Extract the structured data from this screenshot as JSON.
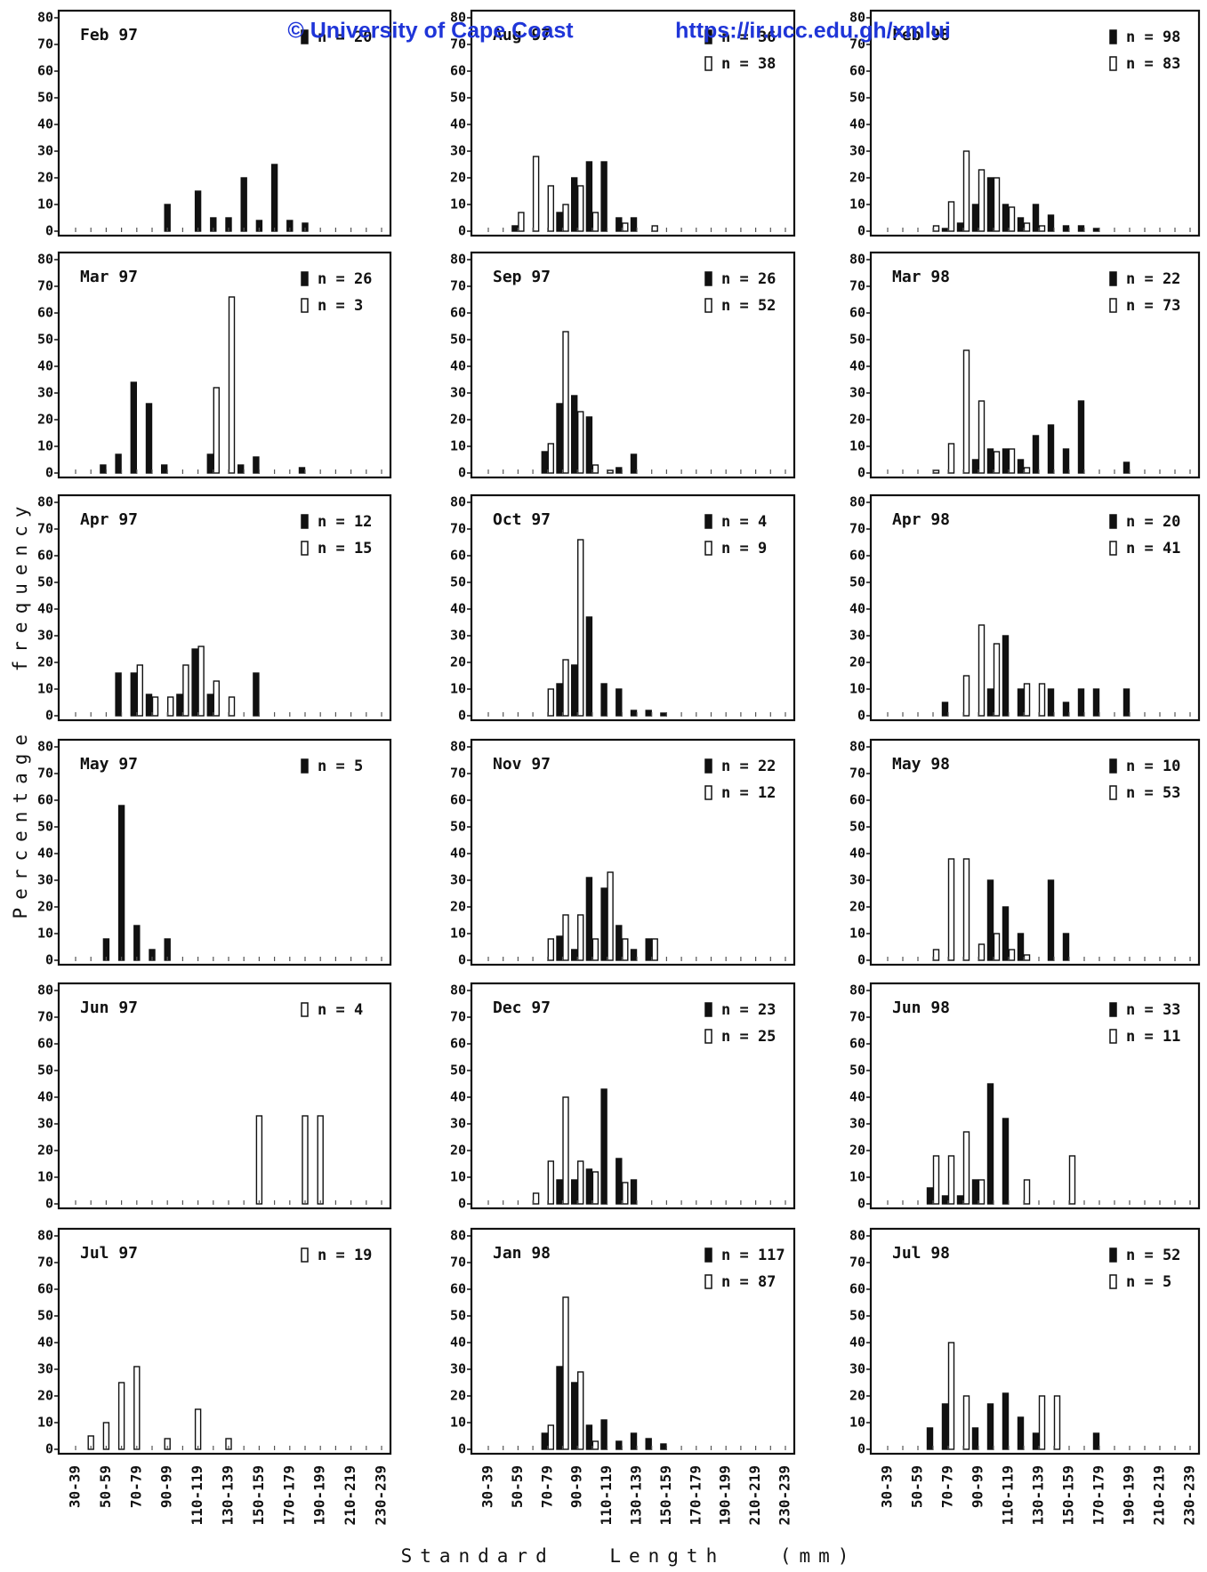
{
  "y_axis_label": "Percentage frequency",
  "x_axis_label": "Standard Length (mm)",
  "watermark": {
    "copyright": "© University of Cape Coast",
    "url": "https://ir.ucc.edu.gh/xmlui"
  },
  "chart_data": [
    {
      "type": "bar",
      "title": "Feb 97",
      "ylim": [
        0,
        80
      ],
      "yticks": [
        0,
        10,
        20,
        30,
        40,
        50,
        60,
        70,
        80
      ],
      "series": [
        {
          "name": "n = 20",
          "color": "#111111",
          "values": [
            0,
            0,
            0,
            0,
            0,
            0,
            10,
            0,
            15,
            5,
            5,
            20,
            4,
            25,
            4,
            3,
            0,
            0,
            0,
            0,
            0
          ]
        }
      ]
    },
    {
      "type": "bar",
      "title": "Mar 97",
      "ylim": [
        0,
        80
      ],
      "yticks": [
        0,
        10,
        20,
        30,
        40,
        50,
        60,
        70,
        80
      ],
      "series": [
        {
          "name": "n = 26",
          "color": "#111111",
          "values": [
            0,
            0,
            3,
            7,
            34,
            26,
            3,
            0,
            0,
            7,
            0,
            3,
            6,
            0,
            0,
            2,
            0,
            0,
            0,
            0,
            0
          ]
        },
        {
          "name": "n = 3",
          "color": "#ffffff",
          "values": [
            0,
            0,
            0,
            0,
            0,
            0,
            0,
            0,
            0,
            32,
            66,
            0,
            0,
            0,
            0,
            0,
            0,
            0,
            0,
            0,
            0
          ]
        }
      ]
    },
    {
      "type": "bar",
      "title": "Apr 97",
      "ylim": [
        0,
        80
      ],
      "yticks": [
        0,
        10,
        20,
        30,
        40,
        50,
        60,
        70,
        80
      ],
      "series": [
        {
          "name": "n = 12",
          "color": "#111111",
          "values": [
            0,
            0,
            0,
            16,
            16,
            8,
            0,
            8,
            25,
            8,
            0,
            0,
            16,
            0,
            0,
            0,
            0,
            0,
            0,
            0,
            0
          ]
        },
        {
          "name": "n = 15",
          "color": "#ffffff",
          "values": [
            0,
            0,
            0,
            0,
            19,
            7,
            7,
            19,
            26,
            13,
            7,
            0,
            0,
            0,
            0,
            0,
            0,
            0,
            0,
            0,
            0
          ]
        }
      ]
    },
    {
      "type": "bar",
      "title": "May 97",
      "ylim": [
        0,
        80
      ],
      "yticks": [
        0,
        10,
        20,
        30,
        40,
        50,
        60,
        70,
        80
      ],
      "series": [
        {
          "name": "n = 5",
          "color": "#111111",
          "values": [
            0,
            0,
            8,
            58,
            13,
            4,
            8,
            0,
            0,
            0,
            0,
            0,
            0,
            0,
            0,
            0,
            0,
            0,
            0,
            0,
            0
          ]
        }
      ]
    },
    {
      "type": "bar",
      "title": "Jun 97",
      "ylim": [
        0,
        80
      ],
      "yticks": [
        0,
        10,
        20,
        30,
        40,
        50,
        60,
        70,
        80
      ],
      "series": [
        {
          "name": "n = 4",
          "color": "#ffffff",
          "values": [
            0,
            0,
            0,
            0,
            0,
            0,
            0,
            0,
            0,
            0,
            0,
            0,
            33,
            0,
            0,
            33,
            33,
            0,
            0,
            0,
            0
          ]
        }
      ]
    },
    {
      "type": "bar",
      "title": "Jul 97",
      "ylim": [
        0,
        80
      ],
      "yticks": [
        0,
        10,
        20,
        30,
        40,
        50,
        60,
        70,
        80
      ],
      "categories": [
        "30-39",
        null,
        "50-59",
        null,
        "70-79",
        null,
        "90-99",
        null,
        "110-119",
        null,
        "130-139",
        null,
        "150-159",
        null,
        "170-179",
        null,
        "190-199",
        null,
        "210-219",
        null,
        "230-239"
      ],
      "series": [
        {
          "name": "n = 19",
          "color": "#ffffff",
          "values": [
            0,
            5,
            10,
            25,
            31,
            0,
            4,
            0,
            15,
            0,
            4,
            0,
            0,
            0,
            0,
            0,
            0,
            0,
            0,
            0,
            0
          ]
        }
      ]
    },
    {
      "type": "bar",
      "title": "Aug 97",
      "ylim": [
        0,
        80
      ],
      "yticks": [
        0,
        10,
        20,
        30,
        40,
        50,
        60,
        70,
        80
      ],
      "series": [
        {
          "name": "n = 36",
          "color": "#111111",
          "values": [
            0,
            0,
            2,
            0,
            0,
            7,
            20,
            26,
            26,
            5,
            5,
            0,
            0,
            0,
            0,
            0,
            0,
            0,
            0,
            0,
            0
          ]
        },
        {
          "name": "n = 38",
          "color": "#ffffff",
          "values": [
            0,
            0,
            7,
            28,
            17,
            10,
            17,
            7,
            0,
            3,
            0,
            2,
            0,
            0,
            0,
            0,
            0,
            0,
            0,
            0,
            0
          ]
        }
      ]
    },
    {
      "type": "bar",
      "title": "Sep 97",
      "ylim": [
        0,
        80
      ],
      "yticks": [
        0,
        10,
        20,
        30,
        40,
        50,
        60,
        70,
        80
      ],
      "series": [
        {
          "name": "n = 26",
          "color": "#111111",
          "values": [
            0,
            0,
            0,
            0,
            8,
            26,
            29,
            21,
            0,
            2,
            7,
            0,
            0,
            0,
            0,
            0,
            0,
            0,
            0,
            0,
            0
          ]
        },
        {
          "name": "n = 52",
          "color": "#ffffff",
          "values": [
            0,
            0,
            0,
            0,
            11,
            53,
            23,
            3,
            1,
            0,
            0,
            0,
            0,
            0,
            0,
            0,
            0,
            0,
            0,
            0,
            0
          ]
        }
      ]
    },
    {
      "type": "bar",
      "title": "Oct 97",
      "ylim": [
        0,
        80
      ],
      "yticks": [
        0,
        10,
        20,
        30,
        40,
        50,
        60,
        70,
        80
      ],
      "series": [
        {
          "name": "n = 4",
          "color": "#111111",
          "values": [
            0,
            0,
            0,
            0,
            0,
            12,
            19,
            37,
            12,
            10,
            2,
            2,
            1,
            0,
            0,
            0,
            0,
            0,
            0,
            0,
            0
          ]
        },
        {
          "name": "n = 9",
          "color": "#ffffff",
          "values": [
            0,
            0,
            0,
            0,
            10,
            21,
            66,
            0,
            0,
            0,
            0,
            0,
            0,
            0,
            0,
            0,
            0,
            0,
            0,
            0,
            0
          ]
        }
      ]
    },
    {
      "type": "bar",
      "title": "Nov 97",
      "ylim": [
        0,
        80
      ],
      "yticks": [
        0,
        10,
        20,
        30,
        40,
        50,
        60,
        70,
        80
      ],
      "series": [
        {
          "name": "n = 22",
          "color": "#111111",
          "values": [
            0,
            0,
            0,
            0,
            0,
            9,
            4,
            31,
            27,
            13,
            4,
            8,
            0,
            0,
            0,
            0,
            0,
            0,
            0,
            0,
            0
          ]
        },
        {
          "name": "n = 12",
          "color": "#ffffff",
          "values": [
            0,
            0,
            0,
            0,
            8,
            17,
            17,
            8,
            33,
            8,
            0,
            8,
            0,
            0,
            0,
            0,
            0,
            0,
            0,
            0,
            0
          ]
        }
      ]
    },
    {
      "type": "bar",
      "title": "Dec 97",
      "ylim": [
        0,
        80
      ],
      "yticks": [
        0,
        10,
        20,
        30,
        40,
        50,
        60,
        70,
        80
      ],
      "series": [
        {
          "name": "n = 23",
          "color": "#111111",
          "values": [
            0,
            0,
            0,
            0,
            0,
            9,
            9,
            13,
            43,
            17,
            9,
            0,
            0,
            0,
            0,
            0,
            0,
            0,
            0,
            0,
            0
          ]
        },
        {
          "name": "n = 25",
          "color": "#ffffff",
          "values": [
            0,
            0,
            0,
            4,
            16,
            40,
            16,
            12,
            0,
            8,
            0,
            0,
            0,
            0,
            0,
            0,
            0,
            0,
            0,
            0,
            0
          ]
        }
      ]
    },
    {
      "type": "bar",
      "title": "Jan 98",
      "ylim": [
        0,
        80
      ],
      "yticks": [
        0,
        10,
        20,
        30,
        40,
        50,
        60,
        70,
        80
      ],
      "categories": [
        "30-39",
        null,
        "50-59",
        null,
        "70-79",
        null,
        "90-99",
        null,
        "110-119",
        null,
        "130-139",
        null,
        "150-159",
        null,
        "170-179",
        null,
        "190-199",
        null,
        "210-219",
        null,
        "230-239"
      ],
      "series": [
        {
          "name": "n = 117",
          "color": "#111111",
          "values": [
            0,
            0,
            0,
            0,
            6,
            31,
            25,
            9,
            11,
            3,
            6,
            4,
            2,
            0,
            0,
            0,
            0,
            0,
            0,
            0,
            0
          ]
        },
        {
          "name": "n = 87",
          "color": "#ffffff",
          "values": [
            0,
            0,
            0,
            0,
            9,
            57,
            29,
            3,
            0,
            0,
            0,
            0,
            0,
            0,
            0,
            0,
            0,
            0,
            0,
            0,
            0
          ]
        }
      ]
    },
    {
      "type": "bar",
      "title": "Feb 98",
      "ylim": [
        0,
        80
      ],
      "yticks": [
        0,
        10,
        20,
        30,
        40,
        50,
        60,
        70,
        80
      ],
      "series": [
        {
          "name": "n = 98",
          "color": "#111111",
          "values": [
            0,
            0,
            0,
            0,
            1,
            3,
            10,
            20,
            10,
            5,
            10,
            6,
            2,
            2,
            1,
            0,
            0,
            0,
            0,
            0,
            0
          ]
        },
        {
          "name": "n = 83",
          "color": "#ffffff",
          "values": [
            0,
            0,
            0,
            2,
            11,
            30,
            23,
            20,
            9,
            3,
            2,
            0,
            0,
            0,
            0,
            0,
            0,
            0,
            0,
            0,
            0
          ]
        }
      ]
    },
    {
      "type": "bar",
      "title": "Mar 98",
      "ylim": [
        0,
        80
      ],
      "yticks": [
        0,
        10,
        20,
        30,
        40,
        50,
        60,
        70,
        80
      ],
      "series": [
        {
          "name": "n = 22",
          "color": "#111111",
          "values": [
            0,
            0,
            0,
            0,
            0,
            0,
            5,
            9,
            9,
            5,
            14,
            18,
            9,
            27,
            0,
            0,
            4,
            0,
            0,
            0,
            0
          ]
        },
        {
          "name": "n = 73",
          "color": "#ffffff",
          "values": [
            0,
            0,
            0,
            1,
            11,
            46,
            27,
            8,
            9,
            2,
            0,
            0,
            0,
            0,
            0,
            0,
            0,
            0,
            0,
            0,
            0
          ]
        }
      ]
    },
    {
      "type": "bar",
      "title": "Apr 98",
      "ylim": [
        0,
        80
      ],
      "yticks": [
        0,
        10,
        20,
        30,
        40,
        50,
        60,
        70,
        80
      ],
      "series": [
        {
          "name": "n = 20",
          "color": "#111111",
          "values": [
            0,
            0,
            0,
            0,
            5,
            0,
            0,
            10,
            30,
            10,
            0,
            10,
            5,
            10,
            10,
            0,
            10,
            0,
            0,
            0,
            0
          ]
        },
        {
          "name": "n = 41",
          "color": "#ffffff",
          "values": [
            0,
            0,
            0,
            0,
            0,
            15,
            34,
            27,
            0,
            12,
            12,
            0,
            0,
            0,
            0,
            0,
            0,
            0,
            0,
            0,
            0
          ]
        }
      ]
    },
    {
      "type": "bar",
      "title": "May 98",
      "ylim": [
        0,
        80
      ],
      "yticks": [
        0,
        10,
        20,
        30,
        40,
        50,
        60,
        70,
        80
      ],
      "series": [
        {
          "name": "n = 10",
          "color": "#111111",
          "values": [
            0,
            0,
            0,
            0,
            0,
            0,
            0,
            30,
            20,
            10,
            0,
            30,
            10,
            0,
            0,
            0,
            0,
            0,
            0,
            0,
            0
          ]
        },
        {
          "name": "n = 53",
          "color": "#ffffff",
          "values": [
            0,
            0,
            0,
            4,
            38,
            38,
            6,
            10,
            4,
            2,
            0,
            0,
            0,
            0,
            0,
            0,
            0,
            0,
            0,
            0,
            0
          ]
        }
      ]
    },
    {
      "type": "bar",
      "title": "Jun 98",
      "ylim": [
        0,
        80
      ],
      "yticks": [
        0,
        10,
        20,
        30,
        40,
        50,
        60,
        70,
        80
      ],
      "series": [
        {
          "name": "n = 33",
          "color": "#111111",
          "values": [
            0,
            0,
            0,
            6,
            3,
            3,
            9,
            45,
            32,
            0,
            0,
            0,
            0,
            0,
            0,
            0,
            0,
            0,
            0,
            0,
            0
          ]
        },
        {
          "name": "n = 11",
          "color": "#ffffff",
          "values": [
            0,
            0,
            0,
            18,
            18,
            27,
            9,
            0,
            0,
            9,
            0,
            0,
            18,
            0,
            0,
            0,
            0,
            0,
            0,
            0,
            0
          ]
        }
      ]
    },
    {
      "type": "bar",
      "title": "Jul 98",
      "ylim": [
        0,
        80
      ],
      "yticks": [
        0,
        10,
        20,
        30,
        40,
        50,
        60,
        70,
        80
      ],
      "categories": [
        "30-39",
        null,
        "50-59",
        null,
        "70-79",
        null,
        "90-99",
        null,
        "110-119",
        null,
        "130-139",
        null,
        "150-159",
        null,
        "170-179",
        null,
        "190-199",
        null,
        "210-219",
        null,
        "230-239"
      ],
      "series": [
        {
          "name": "n = 52",
          "color": "#111111",
          "values": [
            0,
            0,
            0,
            8,
            17,
            0,
            8,
            17,
            21,
            12,
            6,
            0,
            0,
            0,
            6,
            0,
            0,
            0,
            0,
            0,
            0
          ]
        },
        {
          "name": "n = 5",
          "color": "#ffffff",
          "values": [
            0,
            0,
            0,
            0,
            40,
            20,
            0,
            0,
            0,
            0,
            20,
            20,
            0,
            0,
            0,
            0,
            0,
            0,
            0,
            0,
            0
          ]
        }
      ]
    }
  ]
}
